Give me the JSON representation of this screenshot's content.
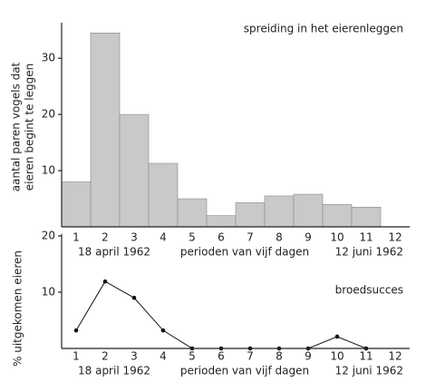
{
  "chart_data": [
    {
      "type": "bar",
      "title": "spreiding in het eierenleggen",
      "ylabel": [
        "aantal paren vogels dat",
        "eieren begint te leggen"
      ],
      "xlabel": "perioden van vijf dagen",
      "x_annotations": [
        "18 april 1962",
        "12 juni 1962"
      ],
      "categories": [
        "1",
        "2",
        "3",
        "4",
        "5",
        "6",
        "7",
        "8",
        "9",
        "10",
        "11",
        "12"
      ],
      "values": [
        8,
        34.5,
        20,
        11.3,
        5,
        2,
        4.3,
        5.5,
        5.8,
        4,
        3.5,
        null
      ],
      "color": "#c9c9c9",
      "ylim": [
        0,
        36
      ],
      "yticks": [
        10,
        20,
        30
      ]
    },
    {
      "type": "line",
      "title": "broedsucces",
      "ylabel": "% uitgekomen eieren",
      "xlabel": "perioden van vijf dagen",
      "x_annotations": [
        "18 april 1962",
        "12 juni 1962"
      ],
      "categories": [
        "1",
        "2",
        "3",
        "4",
        "5",
        "6",
        "7",
        "8",
        "9",
        "10",
        "11",
        "12"
      ],
      "values": [
        3.2,
        11.9,
        9,
        3.2,
        0,
        0,
        0,
        0,
        0,
        2.1,
        0,
        null
      ],
      "color": "#111111",
      "ylim": [
        0,
        20
      ],
      "yticks": [
        10,
        20
      ]
    }
  ]
}
